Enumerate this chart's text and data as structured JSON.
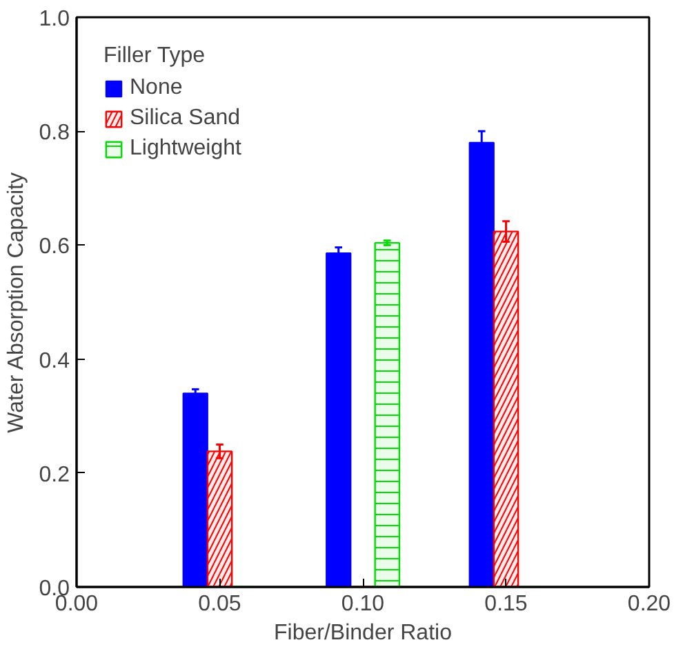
{
  "chart_data": {
    "type": "bar",
    "xlabel": "Fiber/Binder Ratio",
    "ylabel": "Water Absorption Capacity",
    "legend_title": "Filler Type",
    "legend": "top left",
    "grid": false,
    "xlim": [
      0,
      0.2
    ],
    "xticks": [
      {
        "value": 0,
        "label": "0.00"
      },
      0.05,
      {
        "value": 0.1,
        "label": "0.10"
      },
      0.15,
      {
        "value": 0.2,
        "label": "0.20"
      }
    ],
    "ylim": [
      0,
      1
    ],
    "yticks": [
      {
        "value": 0,
        "label": "0.0"
      },
      0.2,
      0.4,
      0.6,
      0.8,
      {
        "value": 1,
        "label": "1.0"
      }
    ],
    "series": [
      {
        "name": "None",
        "color": "#0000ff",
        "x": [
          0.0415,
          0.0915,
          0.1415
        ],
        "values": [
          0.34,
          0.586,
          0.78
        ],
        "errors": [
          0.007,
          0.01,
          0.02
        ]
      },
      {
        "name": "Silica Sand",
        "color": "#ff0000",
        "x": [
          0.05,
          0.1,
          0.15
        ],
        "values": [
          0.238,
          0,
          0.624
        ],
        "errors": [
          0.012,
          null,
          0.018
        ]
      },
      {
        "name": "Lightweight",
        "color": "#00dd00",
        "x": [
          0.0585,
          0.1085,
          0.1585
        ],
        "values": [
          0,
          0.604,
          0
        ],
        "errors": [
          null,
          0.004,
          null
        ]
      }
    ]
  }
}
